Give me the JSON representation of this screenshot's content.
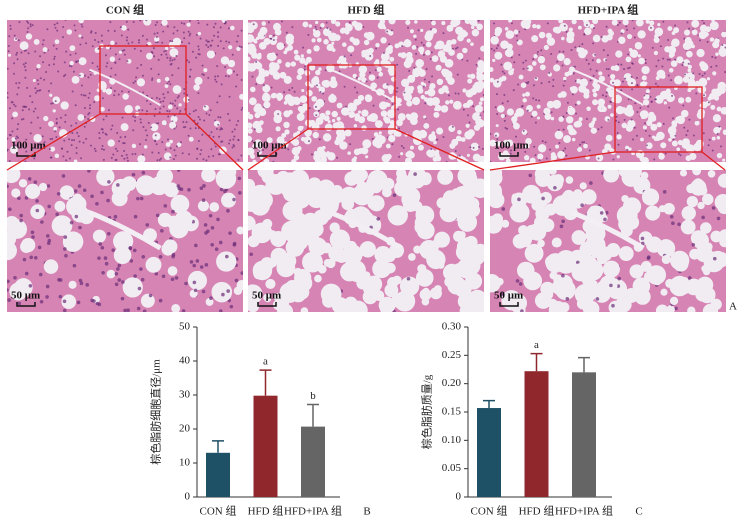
{
  "panel_a": {
    "titles": [
      "CON 组",
      "HFD 组",
      "HFD+IPA 组"
    ],
    "scale_bars": [
      [
        "100 μm",
        "100 μm",
        "100 μm"
      ],
      [
        "50 μm",
        "50 μm",
        "50 μm"
      ]
    ],
    "panel_label": "A"
  },
  "chart_data": [
    {
      "type": "bar",
      "panel_label": "B",
      "ylabel": "棕色脂肪细胞直径/μm",
      "categories": [
        "CON 组",
        "HFD 组",
        "HFD+IPA 组"
      ],
      "values": [
        13,
        29.8,
        20.7
      ],
      "errors": [
        3.5,
        7.5,
        6.5
      ],
      "bar_labels": [
        null,
        "a",
        "b"
      ],
      "colors": [
        "#1e5166",
        "#8f272c",
        "#656565"
      ],
      "ylim": [
        0,
        50
      ],
      "yticks": [
        0,
        10,
        20,
        30,
        40,
        50
      ]
    },
    {
      "type": "bar",
      "panel_label": "C",
      "ylabel": "棕色脂肪质量/g",
      "categories": [
        "CON 组",
        "HFD 组",
        "HFD+IPA 组"
      ],
      "values": [
        0.157,
        0.222,
        0.22
      ],
      "errors": [
        0.013,
        0.031,
        0.026
      ],
      "bar_labels": [
        null,
        "a",
        null
      ],
      "colors": [
        "#1e5166",
        "#8f272c",
        "#656565"
      ],
      "ylim": [
        0,
        0.3
      ],
      "yticks": [
        0,
        0.05,
        {
          "value": 0.1,
          "label": "0.10"
        },
        0.15,
        {
          "value": 0.2,
          "label": "0.20"
        },
        0.25,
        {
          "value": 0.3,
          "label": "0.30"
        }
      ]
    }
  ]
}
